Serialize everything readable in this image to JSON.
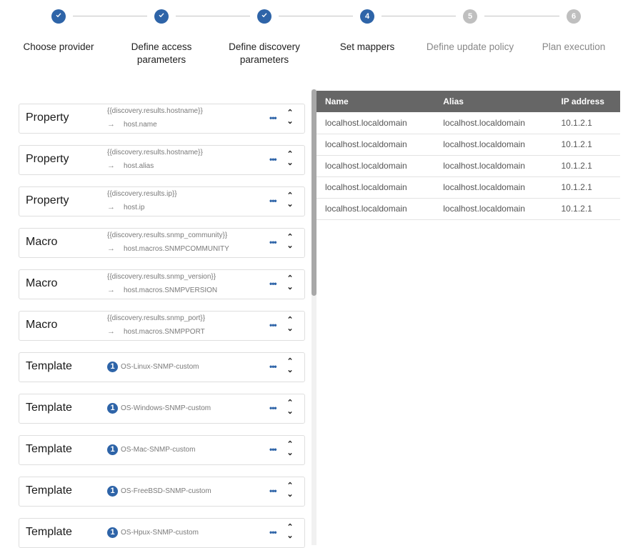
{
  "steps": [
    {
      "label": "Choose provider",
      "state": "done",
      "icon": "check-icon"
    },
    {
      "label": "Define access parameters",
      "state": "done",
      "icon": "check-icon"
    },
    {
      "label": "Define discovery parameters",
      "state": "done",
      "icon": "check-icon"
    },
    {
      "label": "Set mappers",
      "state": "active",
      "number": "4"
    },
    {
      "label": "Define update policy",
      "state": "todo",
      "number": "5"
    },
    {
      "label": "Plan execution",
      "state": "todo",
      "number": "6"
    }
  ],
  "mappers": [
    {
      "type": "Property",
      "source": "{{discovery.results.hostname}}",
      "target": "host.name"
    },
    {
      "type": "Property",
      "source": "{{discovery.results.hostname}}",
      "target": "host.alias"
    },
    {
      "type": "Property",
      "source": "{{discovery.results.ip}}",
      "target": "host.ip"
    },
    {
      "type": "Macro",
      "source": "{{discovery.results.snmp_community}}",
      "target": "host.macros.SNMPCOMMUNITY"
    },
    {
      "type": "Macro",
      "source": "{{discovery.results.snmp_version}}",
      "target": "host.macros.SNMPVERSION"
    },
    {
      "type": "Macro",
      "source": "{{discovery.results.snmp_port}}",
      "target": "host.macros.SNMPPORT"
    },
    {
      "type": "Template",
      "badge": "1",
      "template": "OS-Linux-SNMP-custom"
    },
    {
      "type": "Template",
      "badge": "1",
      "template": "OS-Windows-SNMP-custom"
    },
    {
      "type": "Template",
      "badge": "1",
      "template": "OS-Mac-SNMP-custom"
    },
    {
      "type": "Template",
      "badge": "1",
      "template": "OS-FreeBSD-SNMP-custom"
    },
    {
      "type": "Template",
      "badge": "1",
      "template": "OS-Hpux-SNMP-custom"
    }
  ],
  "table": {
    "columns": [
      "Name",
      "Alias",
      "IP address"
    ],
    "rows": [
      [
        "localhost.localdomain",
        "localhost.localdomain",
        "10.1.2.1"
      ],
      [
        "localhost.localdomain",
        "localhost.localdomain",
        "10.1.2.1"
      ],
      [
        "localhost.localdomain",
        "localhost.localdomain",
        "10.1.2.1"
      ],
      [
        "localhost.localdomain",
        "localhost.localdomain",
        "10.1.2.1"
      ],
      [
        "localhost.localdomain",
        "localhost.localdomain",
        "10.1.2.1"
      ]
    ]
  },
  "colors": {
    "accent": "#2e64a8",
    "header": "#666666",
    "inactive": "#bfbfbf"
  }
}
